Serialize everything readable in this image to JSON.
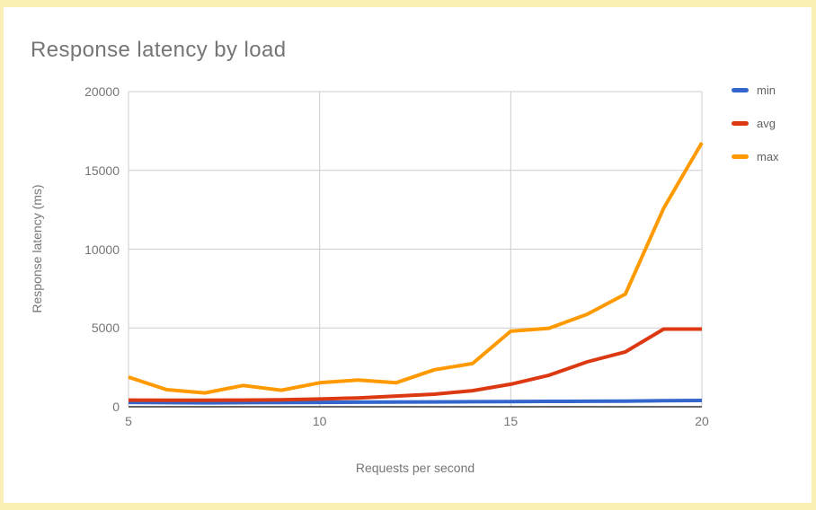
{
  "page": {
    "frame_color": "#faf0b5",
    "background": "#ffffff"
  },
  "colors": {
    "title_text": "#757575",
    "tick_text": "#757575",
    "legend_text": "#616161",
    "gridline": "#cccccc",
    "baseline": "#333333",
    "series_min": "#3366cc",
    "series_avg": "#dc3912",
    "series_max": "#ff9900"
  },
  "chart": {
    "title": "Response latency by load",
    "x_axis": {
      "title": "Requests per second"
    },
    "y_axis": {
      "title": "Response latency (ms)"
    }
  },
  "chart_data": {
    "type": "line",
    "title": "Response latency by load",
    "xlabel": "Requests per second",
    "ylabel": "Response latency (ms)",
    "grid": true,
    "legend_position": "right",
    "xlim": [
      5,
      20
    ],
    "ylim": [
      0,
      20000
    ],
    "x_ticks": [
      5,
      10,
      15,
      20
    ],
    "x_tick_labels": [
      "5",
      "10",
      "15",
      "20"
    ],
    "y_ticks": [
      0,
      5000,
      10000,
      15000,
      20000
    ],
    "y_tick_labels": [
      "0",
      "5000",
      "10000",
      "15000",
      "20000"
    ],
    "x": [
      5,
      6,
      7,
      8,
      9,
      10,
      11,
      12,
      13,
      14,
      15,
      16,
      17,
      18,
      19,
      20
    ],
    "series": [
      {
        "name": "min",
        "color": "#3366cc",
        "values": [
          280,
          260,
          250,
          260,
          270,
          280,
          290,
          300,
          310,
          320,
          330,
          340,
          350,
          360,
          380,
          400
        ]
      },
      {
        "name": "avg",
        "color": "#dc3912",
        "values": [
          420,
          410,
          410,
          420,
          440,
          490,
          560,
          680,
          800,
          1020,
          1430,
          2000,
          2850,
          3480,
          4930,
          4930
        ]
      },
      {
        "name": "max",
        "color": "#ff9900",
        "values": [
          1880,
          1080,
          880,
          1350,
          1050,
          1520,
          1700,
          1520,
          2350,
          2740,
          4790,
          4980,
          5870,
          7150,
          12600,
          16750
        ]
      }
    ]
  }
}
